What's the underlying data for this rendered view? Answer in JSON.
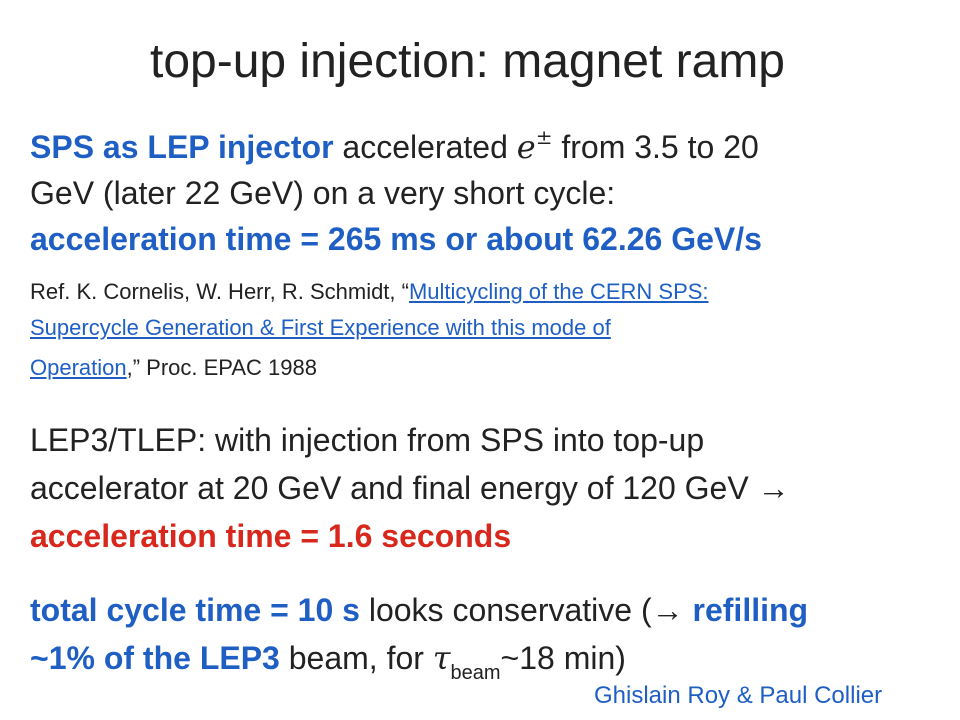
{
  "slide": {
    "title": "top-up injection: magnet ramp",
    "p1": {
      "l1_bold": "SPS as LEP injector",
      "l1_text": " accelerated ",
      "l1_e": "e",
      "l1_sup": "±",
      "l1_rest": " from 3.5 to 20",
      "l2": "GeV (later 22 GeV) on a very short cycle:",
      "l3": "acceleration time = 265 ms or about 62.26 GeV/s"
    },
    "ref": {
      "prefix": "Ref. K. Cornelis, W. Herr, R. Schmidt, “",
      "link1": "Multicycling of the CERN SPS:",
      "link2": "Supercycle Generation & First Experience with this mode of",
      "link3": "Operation",
      "suffix": ",” Proc. EPAC 1988"
    },
    "p2": {
      "l1": "LEP3/TLEP: with injection from SPS into top-up",
      "l2": "accelerator at 20 GeV and final energy of 120 GeV →",
      "l3": "acceleration time = 1.6 seconds"
    },
    "p3": {
      "l1_bold": "total cycle time = 10 s",
      "l1_text": " looks conservative (→ ",
      "l1_bold2": "refilling",
      "l2_bold": "~1% of the LEP3",
      "l2_text": " beam, for ",
      "l2_tau": "τ",
      "l2_sub": "beam",
      "l2_rest": "~18 min)"
    },
    "credit": "Ghislain Roy & Paul Collier"
  }
}
